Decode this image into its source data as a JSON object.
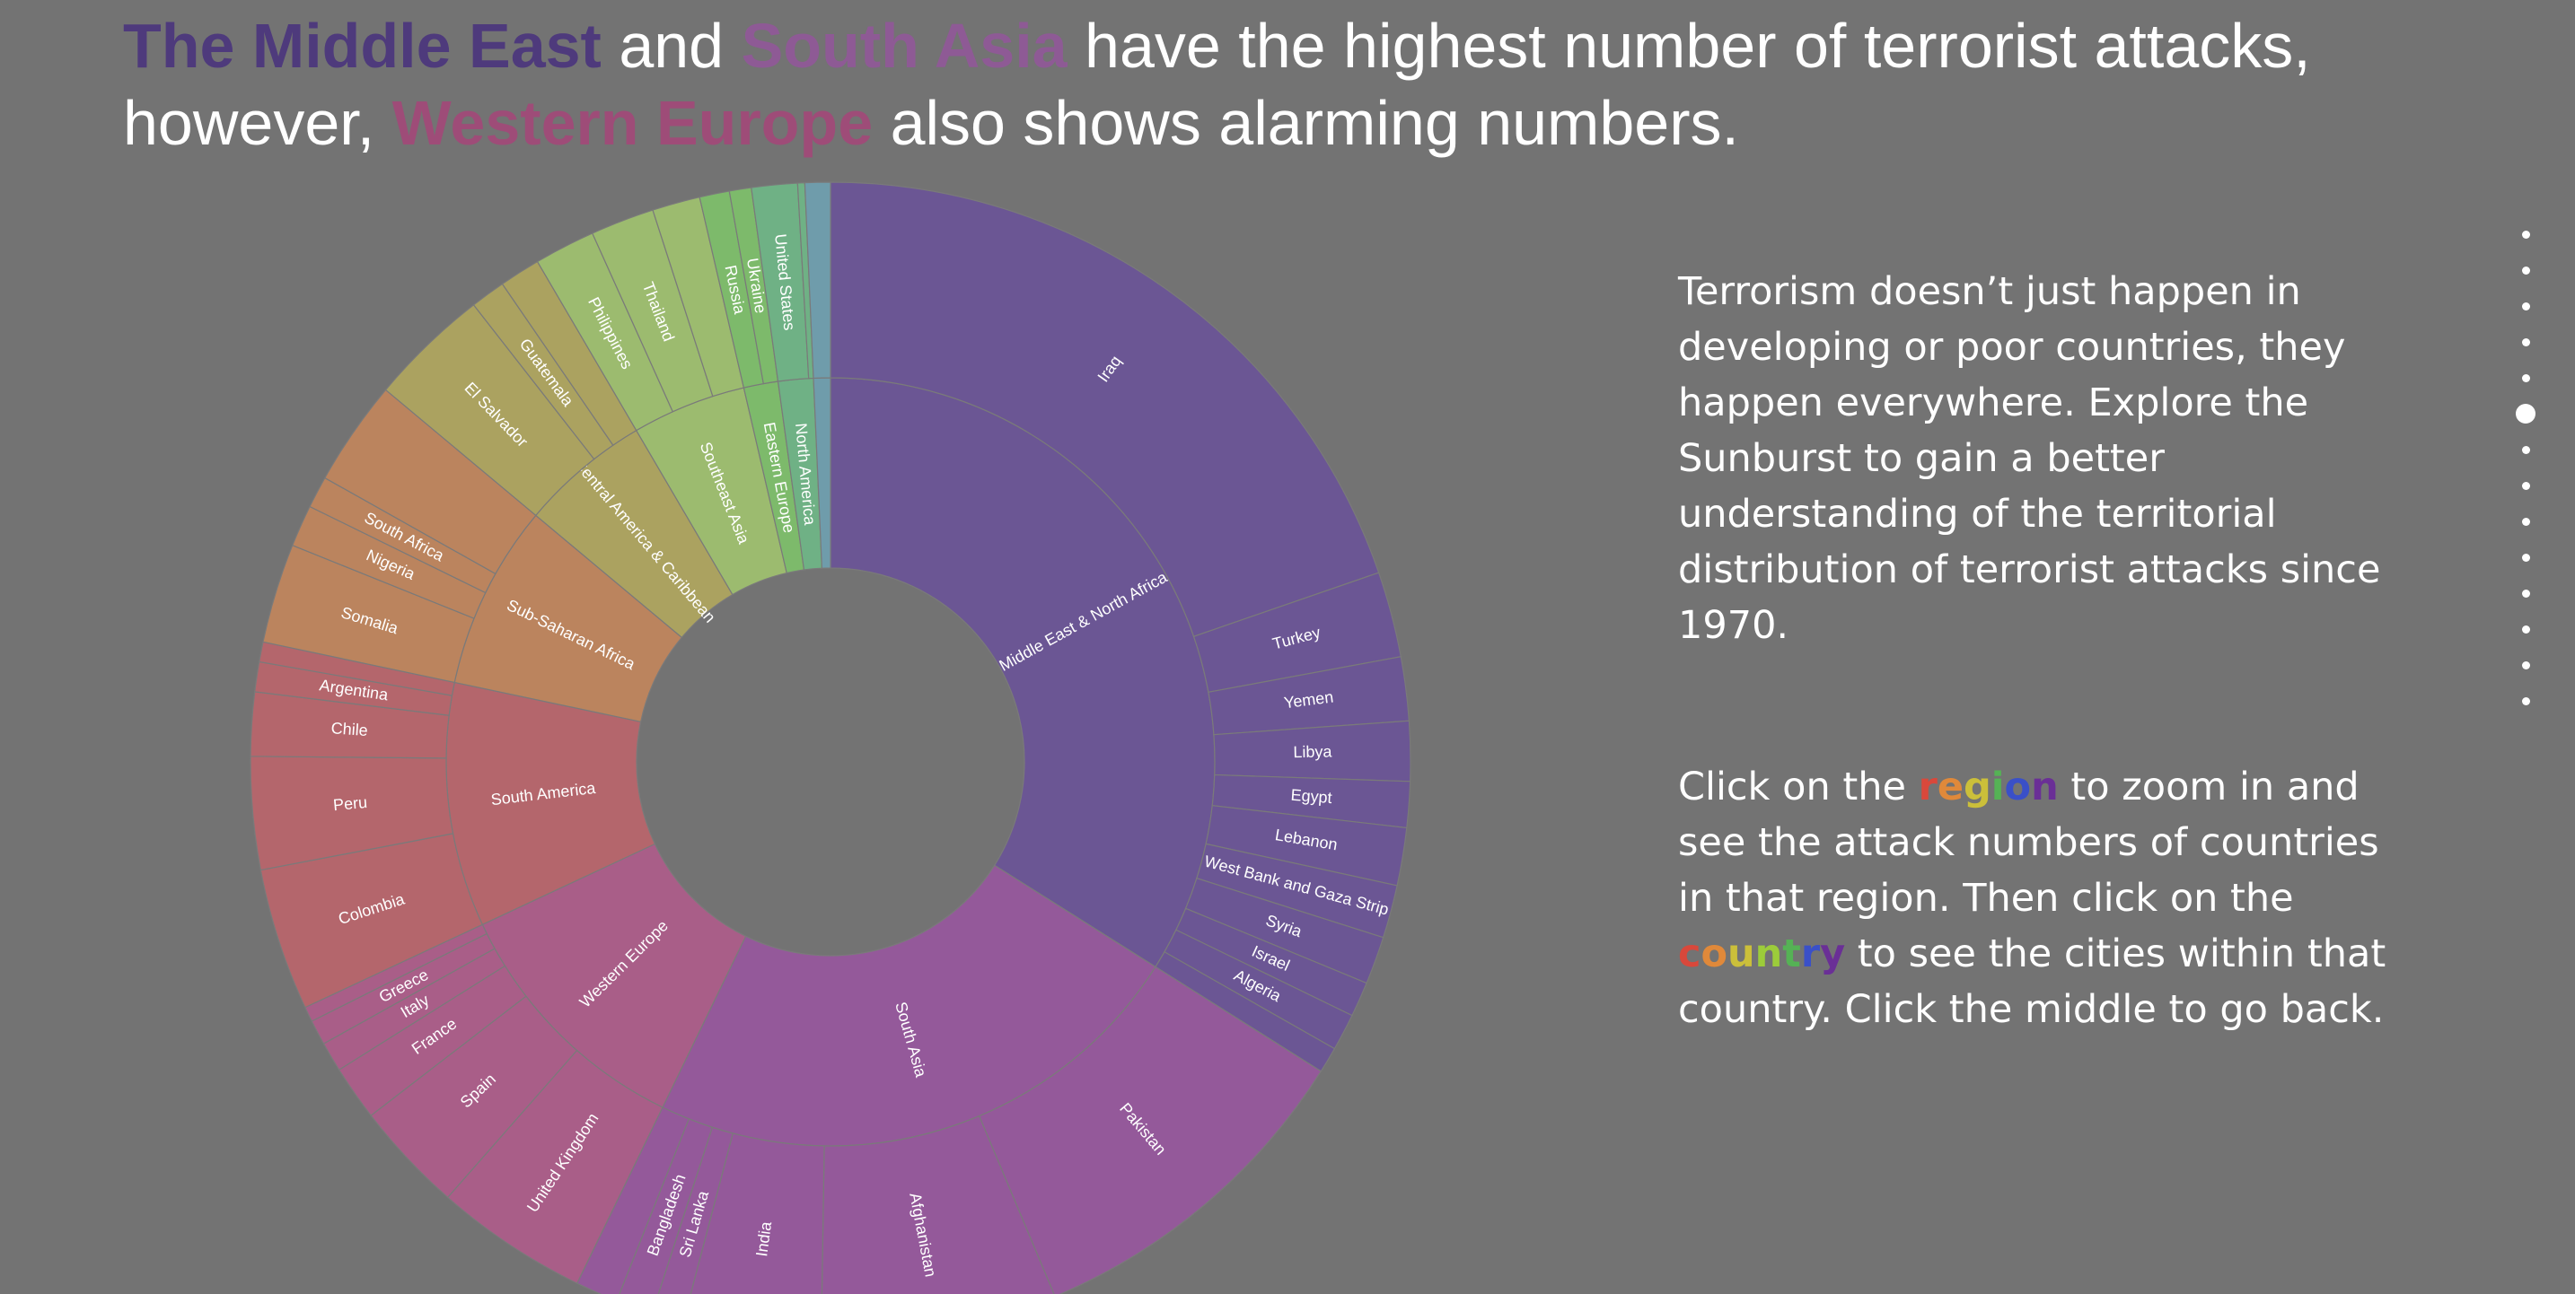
{
  "header": {
    "title_lines": [
      [
        {
          "text": "The Middle East",
          "color": "#4e3a7c"
        },
        {
          "text": " and "
        },
        {
          "text": "South Asia",
          "color": "#8e5a95"
        },
        {
          "text": " have the highest number of terrorist attacks,"
        }
      ],
      [
        {
          "text": "however, "
        },
        {
          "text": "Western Europe",
          "color": "#9e4c78"
        },
        {
          "text": " also shows alarming numbers."
        }
      ]
    ]
  },
  "text": {
    "paragraph_1": "Terrorism doesn’t just happen in developing or poor countries, they happen everywhere. Explore the Sunburst to gain a better understanding of the territorial distribution of terrorist attacks since 1970.",
    "paragraph_2": [
      {
        "text": "Click on the "
      },
      {
        "text": "region",
        "letter_colors": [
          "#d9483b",
          "#e0893a",
          "#cbbf3a",
          "#55b255",
          "#3a50c8",
          "#6a2f96"
        ]
      },
      {
        "text": " to zoom in and see the attack numbers of countries in that region. Then click on the "
      },
      {
        "text": "country",
        "letter_colors": [
          "#d9483b",
          "#e0893a",
          "#cbbf3a",
          "#9ccc3a",
          "#55b255",
          "#3a50c8",
          "#6a2f96"
        ]
      },
      {
        "text": " to see the cities within that country. Click the middle to go back."
      }
    ]
  },
  "chart_data": {
    "type": "sunburst",
    "regions": [
      {
        "name": "Middle East & North Africa",
        "color": "#6b5694",
        "value": 42820,
        "children": [
          {
            "name": "Iraq",
            "value": 24850
          },
          {
            "name": "Turkey",
            "value": 3010
          },
          {
            "name": "Yemen",
            "value": 2240
          },
          {
            "name": "Libya",
            "value": 2100
          },
          {
            "name": "Egypt",
            "value": 1610
          },
          {
            "name": "Lebanon",
            "value": 2030
          },
          {
            "name": "West Bank and Gaza Strip",
            "value": 1860
          },
          {
            "name": "Syria",
            "value": 1680
          },
          {
            "name": "Israel",
            "value": 1230
          },
          {
            "name": "Algeria",
            "value": 1300
          },
          {
            "name": null,
            "value": 910
          }
        ]
      },
      {
        "name": "South Asia",
        "color": "#94599a",
        "value": 29300,
        "children": [
          {
            "name": "Pakistan",
            "value": 12250
          },
          {
            "name": "Afghanistan",
            "value": 8300
          },
          {
            "name": "India",
            "value": 4830
          },
          {
            "name": "Sri Lanka",
            "value": 1120
          },
          {
            "name": "Bangladesh",
            "value": 1300
          },
          {
            "name": null,
            "value": 1500
          }
        ]
      },
      {
        "name": "Western Europe",
        "color": "#a95e88",
        "value": 13670,
        "children": [
          {
            "name": "United Kingdom",
            "value": 5390
          },
          {
            "name": "Spain",
            "value": 3890
          },
          {
            "name": "France",
            "value": 1930
          },
          {
            "name": "Italy",
            "value": 1050
          },
          {
            "name": "Greece",
            "value": 880
          },
          {
            "name": null,
            "value": 530
          }
        ]
      },
      {
        "name": "South America",
        "color": "#b4666c",
        "value": 12960,
        "children": [
          {
            "name": "Colombia",
            "value": 5010
          },
          {
            "name": "Peru",
            "value": 3960
          },
          {
            "name": "Chile",
            "value": 2240
          },
          {
            "name": "Argentina",
            "value": 1050
          },
          {
            "name": null,
            "value": 700
          }
        ]
      },
      {
        "name": "Sub-Saharan Africa",
        "color": "#bb845e",
        "value": 9800,
        "children": [
          {
            "name": "Somalia",
            "value": 3500
          },
          {
            "name": "Nigeria",
            "value": 1470
          },
          {
            "name": "South Africa",
            "value": 1120
          },
          {
            "name": null,
            "value": 3710
          }
        ]
      },
      {
        "name": "Central America & Caribbean",
        "color": "#aba260",
        "value": 6910,
        "children": [
          {
            "name": "El Salvador",
            "value": 4240
          },
          {
            "name": "Guatemala",
            "value": 1230
          },
          {
            "name": null,
            "value": 1440
          }
        ]
      },
      {
        "name": "Southeast Asia",
        "color": "#9cbb6f",
        "value": 6060,
        "children": [
          {
            "name": "Philippines",
            "value": 2140
          },
          {
            "name": "Thailand",
            "value": 2240
          },
          {
            "name": null,
            "value": 1680
          }
        ]
      },
      {
        "name": "Eastern Europe",
        "color": "#7dba6b",
        "value": 1820,
        "children": [
          {
            "name": "Russia",
            "value": 1050
          },
          {
            "name": "Ukraine",
            "value": 770
          }
        ]
      },
      {
        "name": "North America",
        "color": "#6fb185",
        "value": 1860,
        "children": [
          {
            "name": "United States",
            "value": 1610
          },
          {
            "name": null,
            "value": 250
          }
        ]
      },
      {
        "name": null,
        "color": "#6f9cab",
        "value": 890,
        "children": [
          {
            "name": null,
            "value": 890
          }
        ]
      }
    ]
  }
}
